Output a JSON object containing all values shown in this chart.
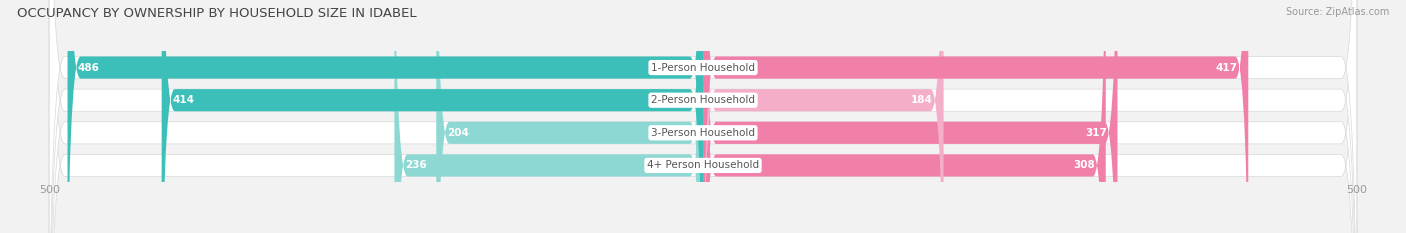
{
  "title": "OCCUPANCY BY OWNERSHIP BY HOUSEHOLD SIZE IN IDABEL",
  "source": "Source: ZipAtlas.com",
  "categories": [
    "1-Person Household",
    "2-Person Household",
    "3-Person Household",
    "4+ Person Household"
  ],
  "owner_values": [
    486,
    414,
    204,
    236
  ],
  "renter_values": [
    417,
    184,
    317,
    308
  ],
  "owner_color_full": "#3BBFB8",
  "owner_color_light": "#8ED8D4",
  "renter_color_full": "#F07FAA",
  "renter_color_light": "#F4AECA",
  "axis_max": 500,
  "background_color": "#f2f2f2",
  "bar_bg_color": "#e5e5e5",
  "title_fontsize": 9.5,
  "label_fontsize": 7.5,
  "tick_fontsize": 8,
  "legend_fontsize": 8,
  "bar_height": 0.68,
  "source_fontsize": 7
}
